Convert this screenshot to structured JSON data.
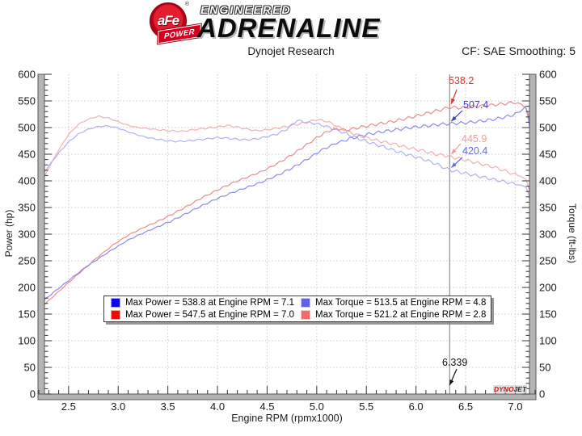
{
  "header": {
    "logo": {
      "brand": "aFe",
      "registered": "®",
      "banner": "POWER",
      "line1": "ENGINEERED",
      "line2": "ADRENALINE"
    },
    "title": "Dynojet Research",
    "smoothing": "CF: SAE Smoothing: 5"
  },
  "watermark": {
    "part1": "DYNO",
    "part2": "JET"
  },
  "chart_data": {
    "type": "line",
    "title": "Dynojet Research",
    "xlabel": "Engine RPM (rpmx1000)",
    "ylabel_left": "Power (hp)",
    "ylabel_right": "Torque (ft-lbs)",
    "xlim": [
      2.2,
      7.2
    ],
    "ylim_left": [
      0,
      600
    ],
    "ylim_right": [
      0,
      600
    ],
    "grid": true,
    "legend_position": "bottom-center",
    "x_ticks": {
      "values": [
        2.5,
        3.0,
        3.5,
        4.0,
        4.5,
        5.0,
        5.5,
        6.0,
        6.5,
        7.0
      ],
      "labels": [
        "2.5",
        "3.0",
        "3.5",
        "4.0",
        "4.5",
        "5.0",
        "5.5",
        "6.0",
        "6.5",
        "7.0"
      ]
    },
    "y_ticks": {
      "values": [
        0,
        50,
        100,
        150,
        200,
        250,
        300,
        350,
        400,
        450,
        500,
        550,
        600
      ],
      "labels": [
        "0",
        "50",
        "100",
        "150",
        "200",
        "250",
        "300",
        "350",
        "400",
        "450",
        "500",
        "550",
        "600"
      ]
    },
    "cursor": {
      "rpm": 6.339,
      "label": "6.339",
      "readouts": [
        {
          "series": "power-red",
          "value": 538.2,
          "label": "538.2",
          "color": "#dd3333"
        },
        {
          "series": "power-blue",
          "value": 507.4,
          "label": "507.4",
          "color": "#3b3bd0"
        },
        {
          "series": "torque-red",
          "value": 445.9,
          "label": "445.9",
          "color": "#f09a9a"
        },
        {
          "series": "torque-blue",
          "value": 420.4,
          "label": "420.4",
          "color": "#6a6ae0"
        }
      ]
    },
    "series": [
      {
        "id": "torque-red",
        "axis": "right",
        "color": "#f2b1b1",
        "max": {
          "value": 521.2,
          "rpm": 2.8
        },
        "points": [
          [
            2.2,
            388
          ],
          [
            2.3,
            424
          ],
          [
            2.4,
            458
          ],
          [
            2.5,
            487
          ],
          [
            2.6,
            506
          ],
          [
            2.7,
            516
          ],
          [
            2.8,
            521.2
          ],
          [
            2.9,
            518
          ],
          [
            3.0,
            511
          ],
          [
            3.1,
            504
          ],
          [
            3.2,
            500
          ],
          [
            3.35,
            497
          ],
          [
            3.5,
            494
          ],
          [
            3.65,
            493
          ],
          [
            3.8,
            497
          ],
          [
            3.95,
            500
          ],
          [
            4.1,
            504
          ],
          [
            4.2,
            501
          ],
          [
            4.3,
            497
          ],
          [
            4.4,
            494
          ],
          [
            4.5,
            496
          ],
          [
            4.6,
            499
          ],
          [
            4.7,
            502
          ],
          [
            4.8,
            506
          ],
          [
            4.9,
            510
          ],
          [
            5.0,
            515
          ],
          [
            5.1,
            512
          ],
          [
            5.2,
            503
          ],
          [
            5.3,
            494
          ],
          [
            5.4,
            487
          ],
          [
            5.5,
            481
          ],
          [
            5.6,
            476
          ],
          [
            5.7,
            472
          ],
          [
            5.8,
            468
          ],
          [
            5.9,
            463
          ],
          [
            6.0,
            459
          ],
          [
            6.1,
            455
          ],
          [
            6.2,
            450
          ],
          [
            6.339,
            445.9
          ],
          [
            6.5,
            439
          ],
          [
            6.65,
            432
          ],
          [
            6.8,
            425
          ],
          [
            6.95,
            415
          ],
          [
            7.05,
            409
          ],
          [
            7.11,
            402
          ],
          [
            7.14,
            385
          ],
          [
            7.16,
            352
          ]
        ]
      },
      {
        "id": "torque-blue",
        "axis": "right",
        "color": "#b1b1f2",
        "max": {
          "value": 513.5,
          "rpm": 4.8
        },
        "points": [
          [
            2.2,
            402
          ],
          [
            2.3,
            428
          ],
          [
            2.4,
            452
          ],
          [
            2.5,
            473
          ],
          [
            2.6,
            488
          ],
          [
            2.7,
            497
          ],
          [
            2.8,
            502
          ],
          [
            2.9,
            503
          ],
          [
            3.0,
            499
          ],
          [
            3.1,
            492
          ],
          [
            3.2,
            486
          ],
          [
            3.3,
            481
          ],
          [
            3.4,
            478
          ],
          [
            3.5,
            475
          ],
          [
            3.6,
            474
          ],
          [
            3.7,
            475
          ],
          [
            3.8,
            477
          ],
          [
            3.9,
            479
          ],
          [
            4.0,
            481
          ],
          [
            4.1,
            480
          ],
          [
            4.2,
            478
          ],
          [
            4.3,
            477
          ],
          [
            4.4,
            479
          ],
          [
            4.5,
            483
          ],
          [
            4.6,
            488
          ],
          [
            4.7,
            497
          ],
          [
            4.8,
            513.5
          ],
          [
            4.9,
            510
          ],
          [
            5.0,
            507
          ],
          [
            5.1,
            502
          ],
          [
            5.2,
            495
          ],
          [
            5.3,
            488
          ],
          [
            5.4,
            481
          ],
          [
            5.5,
            474
          ],
          [
            5.6,
            468
          ],
          [
            5.7,
            462
          ],
          [
            5.8,
            456
          ],
          [
            5.9,
            450
          ],
          [
            6.0,
            445
          ],
          [
            6.1,
            439
          ],
          [
            6.2,
            432
          ],
          [
            6.339,
            420.4
          ],
          [
            6.5,
            414
          ],
          [
            6.65,
            408
          ],
          [
            6.8,
            402
          ],
          [
            6.95,
            396
          ],
          [
            7.05,
            392
          ],
          [
            7.11,
            388
          ],
          [
            7.14,
            372
          ],
          [
            7.16,
            344
          ]
        ]
      },
      {
        "id": "power-red",
        "axis": "left",
        "color": "#ea8c8c",
        "max": {
          "value": 547.5,
          "rpm": 7.0
        },
        "points": [
          [
            2.2,
            158
          ],
          [
            2.35,
            184
          ],
          [
            2.5,
            209
          ],
          [
            2.65,
            234
          ],
          [
            2.8,
            258
          ],
          [
            2.95,
            280
          ],
          [
            3.1,
            298
          ],
          [
            3.25,
            312
          ],
          [
            3.4,
            324
          ],
          [
            3.55,
            338
          ],
          [
            3.7,
            353
          ],
          [
            3.85,
            369
          ],
          [
            4.0,
            383
          ],
          [
            4.15,
            396
          ],
          [
            4.3,
            407
          ],
          [
            4.45,
            418
          ],
          [
            4.6,
            432
          ],
          [
            4.75,
            449
          ],
          [
            4.9,
            468
          ],
          [
            5.0,
            481
          ],
          [
            5.1,
            492
          ],
          [
            5.2,
            498
          ],
          [
            5.3,
            495
          ],
          [
            5.45,
            501
          ],
          [
            5.6,
            506
          ],
          [
            5.75,
            511
          ],
          [
            5.9,
            517
          ],
          [
            6.05,
            524
          ],
          [
            6.2,
            531
          ],
          [
            6.339,
            538.2
          ],
          [
            6.45,
            537
          ],
          [
            6.6,
            540
          ],
          [
            6.75,
            542
          ],
          [
            6.9,
            545
          ],
          [
            7.0,
            547.5
          ],
          [
            7.06,
            544
          ],
          [
            7.11,
            536
          ],
          [
            7.14,
            508
          ],
          [
            7.16,
            470
          ]
        ]
      },
      {
        "id": "power-blue",
        "axis": "left",
        "color": "#8c8cea",
        "max": {
          "value": 538.8,
          "rpm": 7.1
        },
        "points": [
          [
            2.2,
            168
          ],
          [
            2.35,
            191
          ],
          [
            2.5,
            213
          ],
          [
            2.65,
            235
          ],
          [
            2.8,
            254
          ],
          [
            2.95,
            272
          ],
          [
            3.1,
            289
          ],
          [
            3.25,
            302
          ],
          [
            3.4,
            314
          ],
          [
            3.55,
            326
          ],
          [
            3.7,
            340
          ],
          [
            3.85,
            354
          ],
          [
            4.0,
            367
          ],
          [
            4.15,
            378
          ],
          [
            4.3,
            388
          ],
          [
            4.45,
            398
          ],
          [
            4.6,
            410
          ],
          [
            4.75,
            424
          ],
          [
            4.9,
            440
          ],
          [
            5.05,
            458
          ],
          [
            5.2,
            471
          ],
          [
            5.35,
            480
          ],
          [
            5.5,
            487
          ],
          [
            5.65,
            492
          ],
          [
            5.8,
            496
          ],
          [
            5.95,
            500
          ],
          [
            6.1,
            503
          ],
          [
            6.25,
            506
          ],
          [
            6.339,
            507.4
          ],
          [
            6.5,
            509
          ],
          [
            6.65,
            512
          ],
          [
            6.8,
            516
          ],
          [
            6.95,
            522
          ],
          [
            7.05,
            530
          ],
          [
            7.1,
            538.8
          ],
          [
            7.13,
            526
          ],
          [
            7.16,
            468
          ]
        ]
      }
    ],
    "legend": {
      "entries": [
        {
          "swatch_fill": "#0a0af0",
          "swatch_border": "#a8a8f5",
          "label": "Max Power = 538.8 at Engine RPM = 7.1"
        },
        {
          "swatch_fill": "#f00a0a",
          "swatch_border": "#f5a8a8",
          "label": "Max Power = 547.5 at Engine RPM = 7.0"
        },
        {
          "swatch_fill": "#6060e6",
          "swatch_border": "#c9c9f8",
          "label": "Max Torque = 513.5 at Engine RPM = 4.8"
        },
        {
          "swatch_fill": "#f06a6a",
          "swatch_border": "#f8c9c9",
          "label": "Max Torque = 521.2 at Engine RPM = 2.8"
        }
      ]
    }
  }
}
